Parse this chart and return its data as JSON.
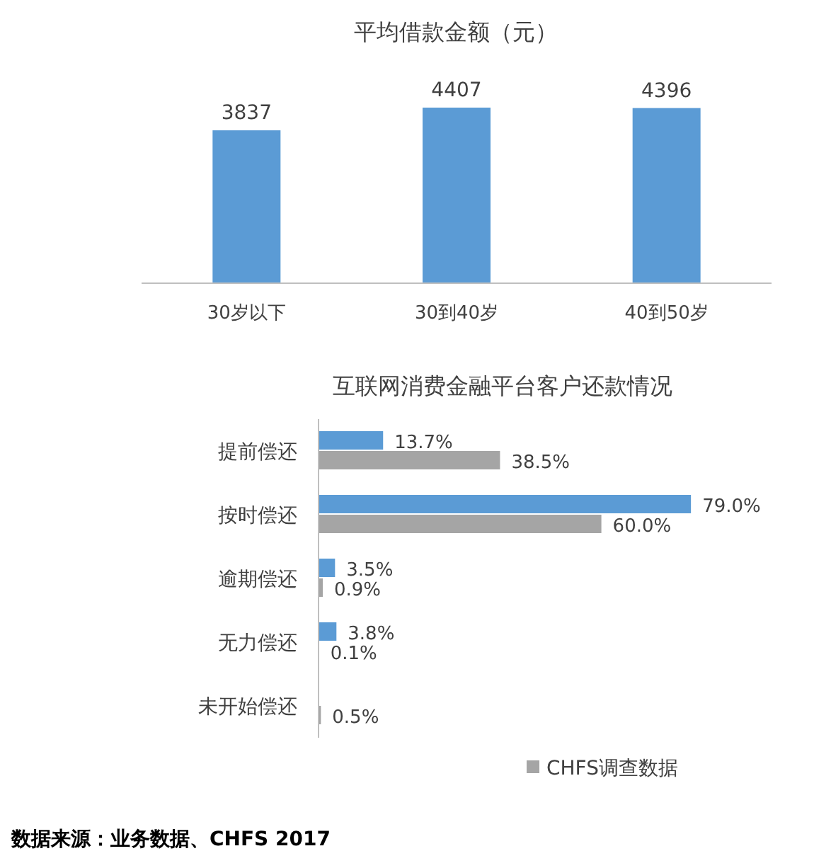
{
  "chart_data": [
    {
      "type": "bar",
      "title": "平均借款金额（元）",
      "categories": [
        "30岁以下",
        "30到40岁",
        "40到50岁"
      ],
      "values": [
        3837,
        4407,
        4396
      ],
      "color": "#5b9bd5",
      "data_labels": true
    },
    {
      "type": "bar",
      "orientation": "horizontal",
      "title": "互联网消费金融平台客户还款情况",
      "categories": [
        "提前偿还",
        "按时偿还",
        "逾期偿还",
        "无力偿还",
        "未开始偿还"
      ],
      "series": [
        {
          "color": "#5b9bd5",
          "values": [
            13.7,
            79.0,
            3.5,
            3.8,
            null
          ],
          "value_labels": [
            "13.7%",
            "79.0%",
            "3.5%",
            "3.8%",
            null
          ]
        },
        {
          "name": "CHFS调查数据",
          "color": "#a5a5a5",
          "values": [
            38.5,
            60.0,
            0.9,
            0.1,
            0.5
          ],
          "value_labels": [
            "38.5%",
            "60.0%",
            "0.9%",
            "0.1%",
            "0.5%"
          ]
        }
      ],
      "legend": "bottom",
      "annotations": [
        "数据来源：业务数据、CHFS 2017"
      ]
    }
  ]
}
